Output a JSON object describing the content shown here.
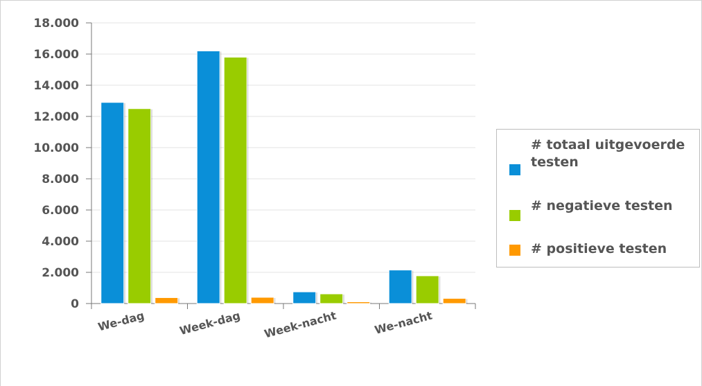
{
  "chart_data": {
    "type": "bar",
    "categories": [
      "We-dag",
      "Week-dag",
      "Week-nacht",
      "We-nacht"
    ],
    "series": [
      {
        "name": "# totaal uitgevoerde testen",
        "values": [
          12900,
          16200,
          750,
          2150
        ],
        "color": "#0a8fd8"
      },
      {
        "name": "# negatieve testen",
        "values": [
          12500,
          15800,
          620,
          1780
        ],
        "color": "#99cc00"
      },
      {
        "name": "# positieve testen",
        "values": [
          380,
          400,
          110,
          330
        ],
        "color": "#ff9900"
      }
    ],
    "ylim": [
      0,
      18000
    ],
    "yticks": [
      {
        "value": 0,
        "label": "0"
      },
      {
        "value": 2000,
        "label": "2.000"
      },
      {
        "value": 4000,
        "label": "4.000"
      },
      {
        "value": 6000,
        "label": "6.000"
      },
      {
        "value": 8000,
        "label": "8.000"
      },
      {
        "value": 10000,
        "label": "10.000"
      },
      {
        "value": 12000,
        "label": "12.000"
      },
      {
        "value": 14000,
        "label": "14.000"
      },
      {
        "value": 16000,
        "label": "16.000"
      },
      {
        "value": 18000,
        "label": "18.000"
      }
    ],
    "grid": true,
    "legend_position": "right",
    "xlabel": "",
    "ylabel": "",
    "title": ""
  },
  "legend": {
    "items": [
      {
        "label": "# totaal uitgevoerde testen",
        "color": "#0a8fd8"
      },
      {
        "label": "# negatieve testen",
        "color": "#99cc00"
      },
      {
        "label": "# positieve testen",
        "color": "#ff9900"
      }
    ]
  }
}
